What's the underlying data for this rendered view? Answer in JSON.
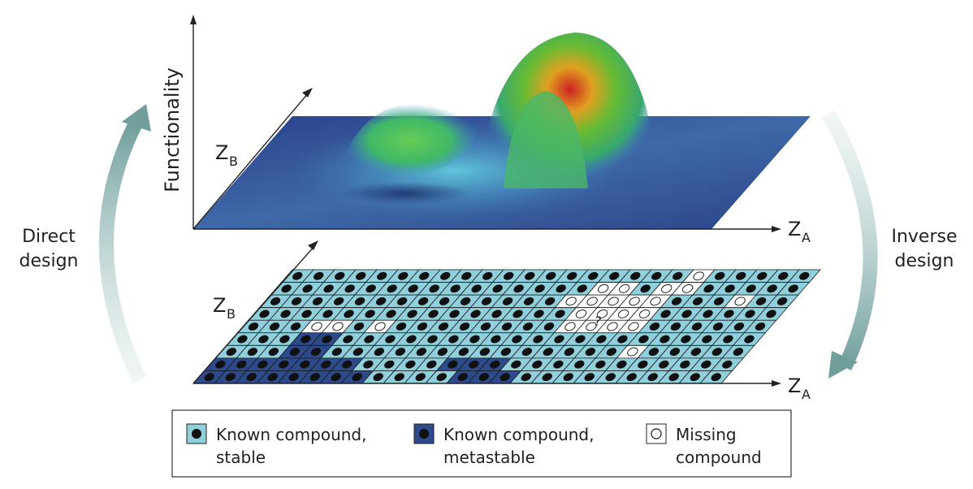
{
  "left_label": [
    "Direct",
    "design"
  ],
  "right_label": [
    "Inverse",
    "design"
  ],
  "top_plot": {
    "y_axis_label": "Functionality",
    "x_axis_label": {
      "main": "Z",
      "sub": "A"
    },
    "depth_axis_label": {
      "main": "Z",
      "sub": "B"
    }
  },
  "bottom_grid": {
    "x_axis_label": {
      "main": "Z",
      "sub": "A"
    },
    "depth_axis_label": {
      "main": "Z",
      "sub": "B"
    },
    "question_mark": "?",
    "rows": [
      "SSSSSSSSSSSSSSSSSSSMSSSSS",
      "SSSSSSSSSSSSSSSMMSMMSSSSS",
      "SSSSSSSSSSSSSSMMMMMSSSMSS",
      "SSSSSSSSSSSSSSSMMMMSSSSSS",
      "SSSMMSMSSSSSSSSMMMMSSSSSS",
      "SSSKKSSSSSSSSSSSSSSSSSSSS",
      "SSSKKSSSSSSSSSSSSSSMSSSSS",
      "KKKKKKKSSSSKKKSSSSSSSSSSS",
      "KKKKKKKKSSSSKKKSSSSSSSSSS"
    ],
    "colors": {
      "S": "#8fd0dc",
      "K": "#2c4a8c",
      "M": "#ffffff"
    }
  },
  "legend": [
    {
      "type": "stable",
      "lines": [
        "Known compound,",
        "stable"
      ],
      "swatch": "#8fd0dc",
      "dot": "filled"
    },
    {
      "type": "metastable",
      "lines": [
        "Known compound,",
        "metastable"
      ],
      "swatch": "#2c4a8c",
      "dot": "filled"
    },
    {
      "type": "missing",
      "lines": [
        "Missing",
        "compound"
      ],
      "swatch": "#ffffff",
      "dot": "open"
    }
  ]
}
